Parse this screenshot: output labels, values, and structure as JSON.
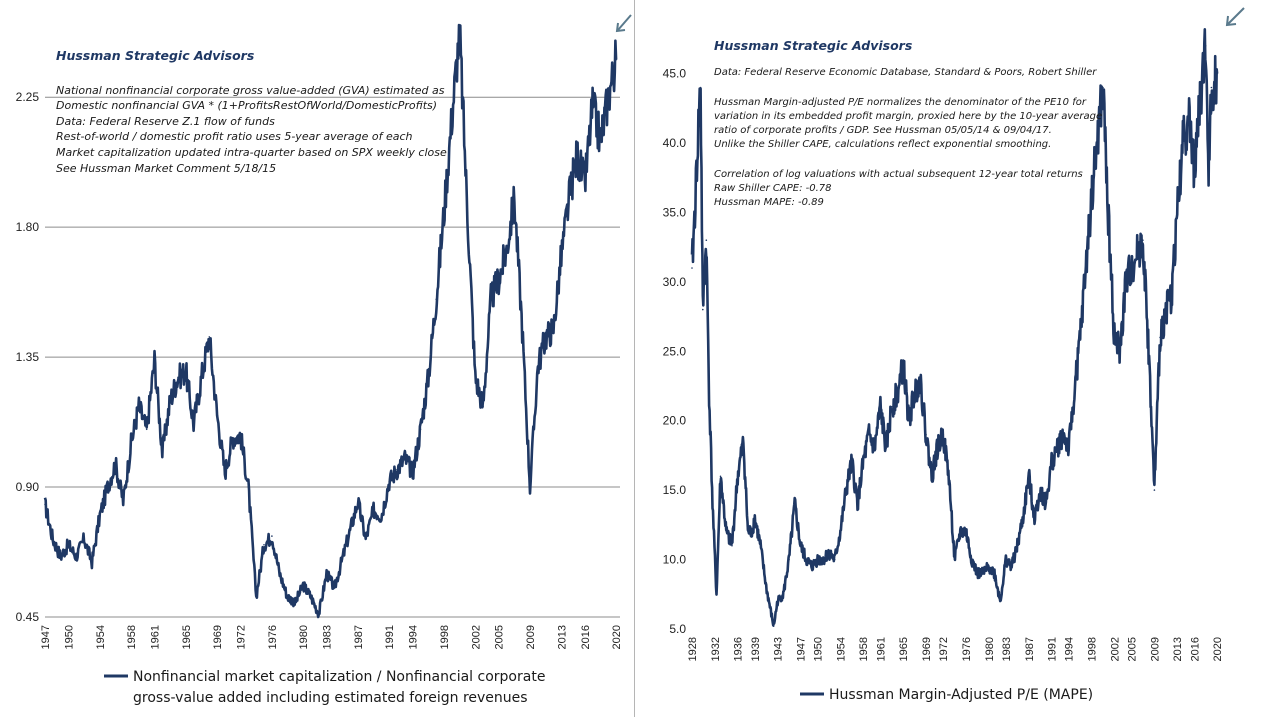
{
  "panels": [
    {
      "brand": "Hussman Strategic Advisors",
      "notes": [
        "National nonfinancial corporate gross value-added (GVA) estimated as",
        "Domestic nonfinancial GVA  * (1+ProfitsRestOfWorld/DomesticProfits)",
        "Data: Federal Reserve Z.1 flow of funds",
        "Rest-of-world  / domestic profit ratio uses 5-year average of each",
        "Market capitalization updated intra-quarter based on SPX weekly close",
        "See Hussman Market Comment 5/18/15"
      ],
      "legend": [
        "Nonfinancial market capitalization / Nonfinancial corporate",
        "gross-value added including estimated foreign revenues"
      ]
    },
    {
      "brand": "Hussman Strategic Advisors",
      "notes": [
        "Data:  Federal Reserve Economic Database, Standard & Poors, Robert Shiller",
        "",
        "Hussman Margin-adjusted P/E normalizes the denominator of the PE10 for",
        "variation in its embedded profit margin, proxied here by the 10-year average",
        "ratio of corporate profits / GDP. See Hussman 05/05/14 & 09/04/17.",
        "Unlike the Shiller CAPE, calculations reflect exponential smoothing.",
        "",
        "Correlation of log valuations  with actual subsequent 12-year total returns",
        "Raw Shiller CAPE: -0.78",
        "Hussman MAPE: -0.89"
      ],
      "legend": [
        "Hussman Margin-Adjusted P/E (MAPE)"
      ]
    }
  ],
  "colors": {
    "series": "#1f3864",
    "arrow": "#5a7a8c",
    "grid": "#8c8c8c"
  },
  "chart_data": [
    {
      "type": "line",
      "title": "",
      "series": [
        {
          "name": "Nonfinancial market capitalization / Nonfinancial corporate gross-value added including estimated foreign revenues",
          "points": [
            [
              1947,
              0.84
            ],
            [
              1948,
              0.72
            ],
            [
              1949,
              0.66
            ],
            [
              1950,
              0.7
            ],
            [
              1951,
              0.66
            ],
            [
              1952,
              0.72
            ],
            [
              1953,
              0.64
            ],
            [
              1954,
              0.8
            ],
            [
              1955,
              0.9
            ],
            [
              1956,
              0.98
            ],
            [
              1957,
              0.85
            ],
            [
              1958,
              1.05
            ],
            [
              1959,
              1.18
            ],
            [
              1960,
              1.1
            ],
            [
              1961,
              1.34
            ],
            [
              1962,
              1.02
            ],
            [
              1963,
              1.2
            ],
            [
              1964,
              1.28
            ],
            [
              1965,
              1.3
            ],
            [
              1966,
              1.12
            ],
            [
              1967,
              1.28
            ],
            [
              1968,
              1.42
            ],
            [
              1969,
              1.15
            ],
            [
              1970,
              0.95
            ],
            [
              1971,
              1.07
            ],
            [
              1972,
              1.08
            ],
            [
              1973,
              0.9
            ],
            [
              1974,
              0.52
            ],
            [
              1975,
              0.7
            ],
            [
              1976,
              0.73
            ],
            [
              1977,
              0.6
            ],
            [
              1978,
              0.52
            ],
            [
              1979,
              0.5
            ],
            [
              1980,
              0.56
            ],
            [
              1981,
              0.52
            ],
            [
              1982,
              0.46
            ],
            [
              1983,
              0.6
            ],
            [
              1984,
              0.55
            ],
            [
              1985,
              0.65
            ],
            [
              1986,
              0.75
            ],
            [
              1987,
              0.85
            ],
            [
              1988,
              0.72
            ],
            [
              1989,
              0.82
            ],
            [
              1990,
              0.8
            ],
            [
              1991,
              0.92
            ],
            [
              1992,
              0.96
            ],
            [
              1993,
              1.0
            ],
            [
              1994,
              0.95
            ],
            [
              1995,
              1.1
            ],
            [
              1996,
              1.28
            ],
            [
              1997,
              1.55
            ],
            [
              1998,
              1.85
            ],
            [
              1999,
              2.18
            ],
            [
              2000,
              2.48
            ],
            [
              2001,
              1.85
            ],
            [
              2002,
              1.28
            ],
            [
              2003,
              1.18
            ],
            [
              2004,
              1.55
            ],
            [
              2005,
              1.62
            ],
            [
              2006,
              1.72
            ],
            [
              2007,
              1.9
            ],
            [
              2008,
              1.45
            ],
            [
              2009,
              0.9
            ],
            [
              2010,
              1.32
            ],
            [
              2011,
              1.42
            ],
            [
              2012,
              1.45
            ],
            [
              2013,
              1.7
            ],
            [
              2014,
              1.9
            ],
            [
              2015,
              2.05
            ],
            [
              2016,
              1.95
            ],
            [
              2017,
              2.22
            ],
            [
              2018,
              2.1
            ],
            [
              2019,
              2.25
            ],
            [
              2020,
              2.38
            ]
          ]
        }
      ],
      "ylim": [
        0.45,
        2.5
      ],
      "yticks": [
        "0.45",
        "0.90",
        "1.35",
        "1.80",
        "2.25"
      ],
      "ytick_values": [
        0.45,
        0.9,
        1.35,
        1.8,
        2.25
      ],
      "xlim": [
        1947,
        2020.5
      ],
      "xticks": [
        "1947",
        "1950",
        "1954",
        "1958",
        "1961",
        "1965",
        "1969",
        "1972",
        "1976",
        "1980",
        "1983",
        "1987",
        "1991",
        "1994",
        "1998",
        "2002",
        "2005",
        "2009",
        "2013",
        "2016",
        "2020"
      ],
      "xtick_values": [
        1947,
        1950,
        1954,
        1958,
        1961,
        1965,
        1969,
        1972,
        1976,
        1980,
        1983,
        1987,
        1991,
        1994,
        1998,
        2002,
        2005,
        2009,
        2013,
        2016,
        2020
      ],
      "grid": "horizontal"
    },
    {
      "type": "line",
      "title": "",
      "series": [
        {
          "name": "Hussman Margin-Adjusted P/E (MAPE)",
          "points": [
            [
              1928,
              31
            ],
            [
              1928.6,
              36
            ],
            [
              1929.2,
              42
            ],
            [
              1929.5,
              44
            ],
            [
              1929.9,
              28
            ],
            [
              1930.5,
              33
            ],
            [
              1931,
              22
            ],
            [
              1931.6,
              14
            ],
            [
              1932.3,
              7.5
            ],
            [
              1933,
              16
            ],
            [
              1934,
              12
            ],
            [
              1935,
              11
            ],
            [
              1936,
              16
            ],
            [
              1937,
              18.5
            ],
            [
              1937.8,
              12
            ],
            [
              1938.5,
              12
            ],
            [
              1939,
              13
            ],
            [
              1940,
              11
            ],
            [
              1941,
              8
            ],
            [
              1942.3,
              5.2
            ],
            [
              1943,
              7
            ],
            [
              1944,
              7.5
            ],
            [
              1945,
              10
            ],
            [
              1946,
              14
            ],
            [
              1947,
              11
            ],
            [
              1948,
              10
            ],
            [
              1949,
              9.5
            ],
            [
              1950,
              10
            ],
            [
              1951,
              10
            ],
            [
              1952,
              10.5
            ],
            [
              1953,
              10
            ],
            [
              1954,
              12
            ],
            [
              1955,
              15
            ],
            [
              1956,
              17
            ],
            [
              1957,
              14
            ],
            [
              1958,
              17
            ],
            [
              1959,
              19
            ],
            [
              1960,
              18
            ],
            [
              1961,
              21
            ],
            [
              1962,
              18
            ],
            [
              1963,
              21
            ],
            [
              1964,
              22
            ],
            [
              1965,
              24
            ],
            [
              1966,
              20
            ],
            [
              1967,
              22
            ],
            [
              1968,
              23
            ],
            [
              1969,
              19
            ],
            [
              1970,
              16
            ],
            [
              1971,
              18
            ],
            [
              1972,
              19
            ],
            [
              1973,
              16
            ],
            [
              1974,
              10
            ],
            [
              1975,
              12
            ],
            [
              1976,
              12
            ],
            [
              1977,
              10
            ],
            [
              1978,
              9
            ],
            [
              1979,
              9
            ],
            [
              1980,
              9.5
            ],
            [
              1981,
              9
            ],
            [
              1982,
              7
            ],
            [
              1983,
              10
            ],
            [
              1984,
              9.5
            ],
            [
              1985,
              11
            ],
            [
              1986,
              13
            ],
            [
              1987,
              16
            ],
            [
              1988,
              13
            ],
            [
              1989,
              15
            ],
            [
              1990,
              14
            ],
            [
              1991,
              17
            ],
            [
              1992,
              18
            ],
            [
              1993,
              19
            ],
            [
              1994,
              18
            ],
            [
              1995,
              22
            ],
            [
              1996,
              26
            ],
            [
              1997,
              31
            ],
            [
              1998,
              36
            ],
            [
              1999,
              40
            ],
            [
              2000,
              44
            ],
            [
              2001,
              34
            ],
            [
              2002,
              26
            ],
            [
              2003,
              25
            ],
            [
              2004,
              30
            ],
            [
              2005,
              31
            ],
            [
              2006,
              32
            ],
            [
              2007,
              33
            ],
            [
              2008,
              25
            ],
            [
              2009,
              15
            ],
            [
              2010,
              26
            ],
            [
              2011,
              28
            ],
            [
              2012,
              29
            ],
            [
              2013,
              35
            ],
            [
              2014,
              40
            ],
            [
              2015,
              42
            ],
            [
              2016,
              38
            ],
            [
              2017,
              43
            ],
            [
              2018,
              47
            ],
            [
              2018.5,
              38
            ],
            [
              2019,
              44
            ],
            [
              2020,
              45
            ]
          ]
        }
      ],
      "ylim": [
        5.0,
        48.5
      ],
      "yticks": [
        "5.0",
        "10.0",
        "15.0",
        "20.0",
        "25.0",
        "30.0",
        "35.0",
        "40.0",
        "45.0"
      ],
      "ytick_values": [
        5,
        10,
        15,
        20,
        25,
        30,
        35,
        40,
        45
      ],
      "xlim": [
        1928,
        2020.5
      ],
      "xticks": [
        "1928",
        "1932",
        "1936",
        "1939",
        "1943",
        "1947",
        "1950",
        "1954",
        "1958",
        "1961",
        "1965",
        "1969",
        "1972",
        "1976",
        "1980",
        "1983",
        "1987",
        "1991",
        "1994",
        "1998",
        "2002",
        "2005",
        "2009",
        "2013",
        "2016",
        "2020"
      ],
      "xtick_values": [
        1928,
        1932,
        1936,
        1939,
        1943,
        1947,
        1950,
        1954,
        1958,
        1961,
        1965,
        1969,
        1972,
        1976,
        1980,
        1983,
        1987,
        1991,
        1994,
        1998,
        2002,
        2005,
        2009,
        2013,
        2016,
        2020
      ],
      "grid": "none"
    }
  ]
}
